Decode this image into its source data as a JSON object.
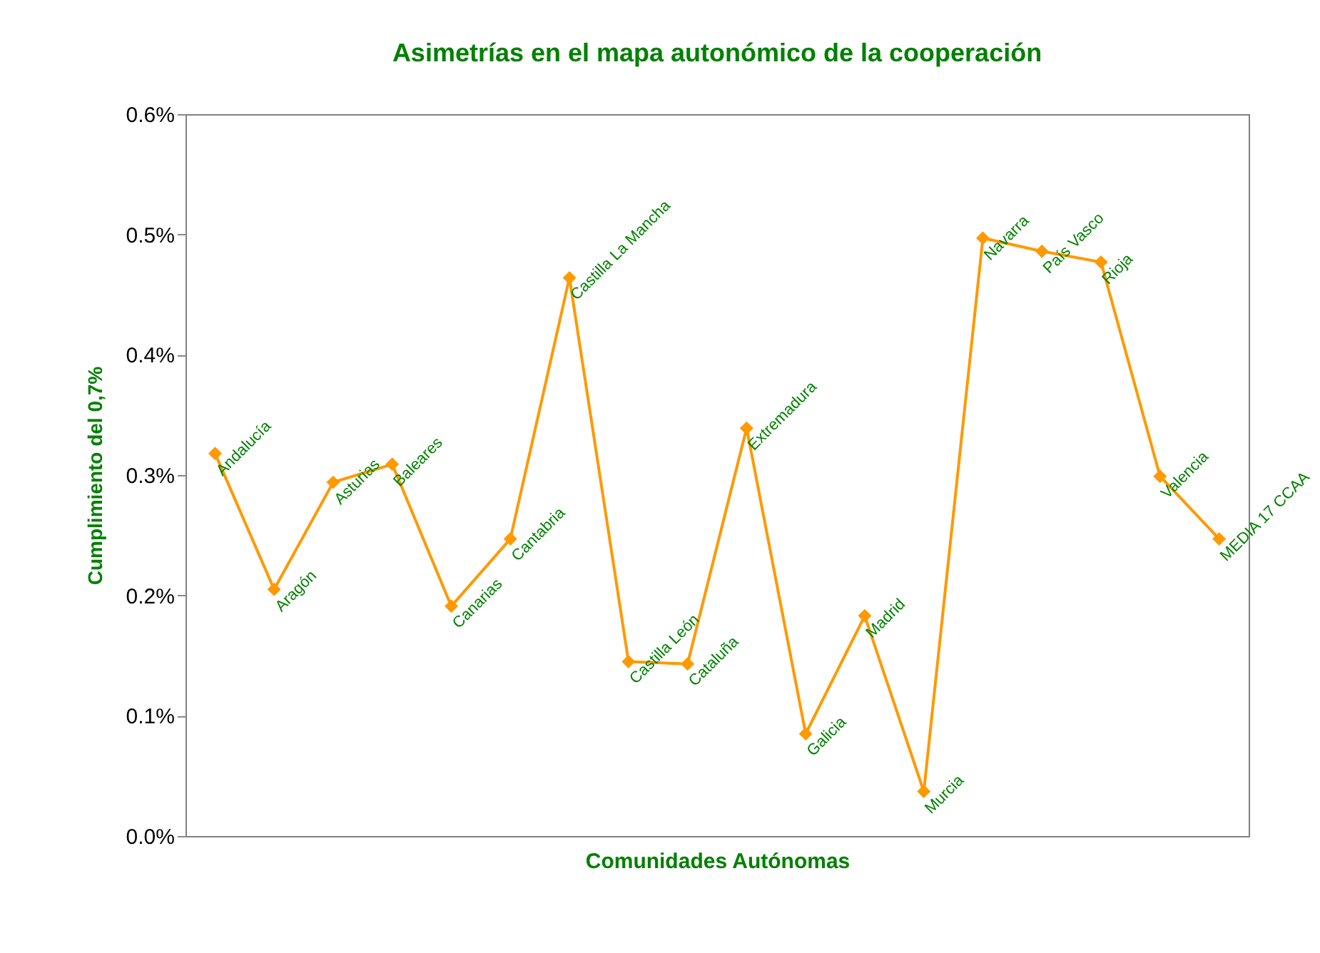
{
  "chart_data": {
    "type": "line",
    "title": "Asimetrías en el mapa autonómico de la cooperación",
    "xlabel": "Comunidades Autónomas",
    "ylabel": "Cumplimiento del 0,7%",
    "categories": [
      null,
      null,
      null,
      null,
      null,
      null,
      null,
      null,
      null,
      null,
      null,
      null,
      null,
      null,
      null,
      null,
      null,
      null
    ],
    "series": [
      {
        "color": "#ff9900",
        "values": [
          0.318,
          0.205,
          0.294,
          0.309,
          0.191,
          0.247,
          0.464,
          0.145,
          0.143,
          0.339,
          0.085,
          0.183,
          0.037,
          0.497,
          0.486,
          0.477,
          0.299,
          0.247
        ],
        "value_labels": [
          "Andalucía",
          "Aragón",
          "Asturias",
          "Baleares",
          "Canarias",
          "Cantabria",
          "Castilla La Mancha",
          "Castilla León",
          "Cataluña",
          "Extremadura",
          "Galicia",
          "Madrid",
          "Murcia",
          "Navarra",
          "País Vasco",
          "Rioja",
          "Valencia",
          "MEDIA 17 CCAA"
        ]
      }
    ],
    "ylim": [
      0,
      0.6
    ],
    "yticks": [
      {
        "value": 0,
        "label": "0.0%"
      },
      {
        "value": 0.1,
        "label": "0.1%"
      },
      {
        "value": 0.2,
        "label": "0.2%"
      },
      {
        "value": 0.3,
        "label": "0.3%"
      },
      {
        "value": 0.4,
        "label": "0.4%"
      },
      {
        "value": 0.5,
        "label": "0.5%"
      },
      {
        "value": 0.6,
        "label": "0.6%"
      }
    ],
    "tick_labels": "y",
    "marker": "diamond",
    "line_style": "solid",
    "grid": false
  }
}
